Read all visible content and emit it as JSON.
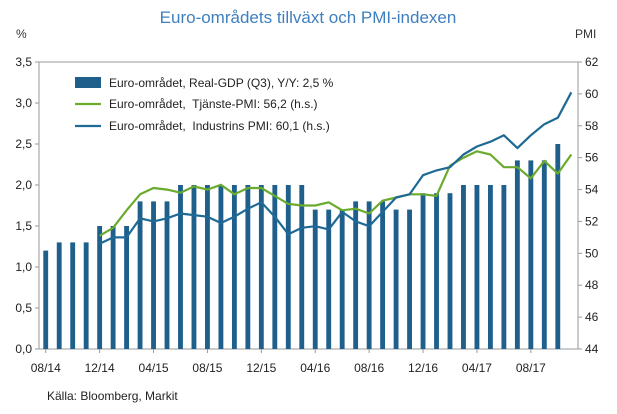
{
  "chart_data": {
    "type": "bar",
    "title": "Euro-områdets tillväxt och PMI-indexen",
    "left_axis_unit": "%",
    "right_axis_unit": "PMI",
    "source": "Källa: Bloomberg, Markit",
    "ylim_left": [
      0,
      3.5
    ],
    "ylim_right": [
      44,
      62
    ],
    "left_ticks": [
      "0,0",
      "0,5",
      "1,0",
      "1,5",
      "2,0",
      "2,5",
      "3,0",
      "3,5"
    ],
    "right_ticks": [
      "44",
      "46",
      "48",
      "50",
      "52",
      "54",
      "56",
      "58",
      "60",
      "62"
    ],
    "x_tick_labels": [
      "08/14",
      "12/14",
      "04/15",
      "08/15",
      "12/15",
      "04/16",
      "08/16",
      "12/16",
      "04/17",
      "08/17"
    ],
    "grid": false,
    "legend_position": "top-left",
    "months": [
      "08/14",
      "09/14",
      "10/14",
      "11/14",
      "12/14",
      "01/15",
      "02/15",
      "03/15",
      "04/15",
      "05/15",
      "06/15",
      "07/15",
      "08/15",
      "09/15",
      "10/15",
      "11/15",
      "12/15",
      "01/16",
      "02/16",
      "03/16",
      "04/16",
      "05/16",
      "06/16",
      "07/16",
      "08/16",
      "09/16",
      "10/16",
      "11/16",
      "12/16",
      "01/17",
      "02/17",
      "03/17",
      "04/17",
      "05/17",
      "06/17",
      "07/17",
      "08/17",
      "09/17",
      "10/17",
      "11/17"
    ],
    "series": [
      {
        "name": "Euro-området, Real-GDP (Q3), Y/Y: 2,5 %",
        "kind": "bar",
        "axis": "left",
        "color": "#1f5f8b",
        "values": [
          1.2,
          1.3,
          1.3,
          1.3,
          1.5,
          1.5,
          1.5,
          1.8,
          1.8,
          1.8,
          2.0,
          2.0,
          2.0,
          2.0,
          2.0,
          2.0,
          2.0,
          2.0,
          2.0,
          2.0,
          1.7,
          1.7,
          1.7,
          1.8,
          1.8,
          1.8,
          1.7,
          1.7,
          1.9,
          1.9,
          1.9,
          2.0,
          2.0,
          2.0,
          2.0,
          2.3,
          2.3,
          2.3,
          2.5,
          null
        ]
      },
      {
        "name": "Euro-området,  Tjänste-PMI: 56,2 (h.s.)",
        "kind": "line",
        "axis": "right",
        "color": "#6aab2e",
        "values": [
          null,
          null,
          null,
          null,
          51.1,
          51.6,
          52.7,
          53.7,
          54.1,
          54.0,
          53.8,
          54.2,
          54.0,
          54.3,
          53.7,
          54.1,
          54.1,
          53.6,
          53.1,
          53.0,
          53.0,
          53.2,
          52.7,
          52.8,
          52.5,
          53.3,
          53.5,
          53.7,
          53.7,
          53.6,
          55.5,
          56.0,
          56.4,
          56.2,
          55.4,
          55.4,
          54.7,
          55.8,
          55.0,
          56.2
        ]
      },
      {
        "name": "Euro-området,  Industrins PMI: 60,1 (h.s.)",
        "kind": "line",
        "axis": "right",
        "color": "#1f6a95",
        "values": [
          null,
          null,
          null,
          null,
          50.6,
          51.0,
          51.0,
          52.2,
          52.0,
          52.2,
          52.5,
          52.4,
          52.3,
          51.9,
          52.3,
          52.8,
          53.2,
          52.3,
          51.2,
          51.6,
          51.7,
          51.5,
          52.6,
          52.0,
          51.7,
          52.6,
          53.5,
          53.7,
          54.9,
          55.2,
          55.4,
          56.2,
          56.7,
          57.0,
          57.4,
          56.6,
          57.4,
          58.1,
          58.5,
          60.1
        ]
      }
    ]
  }
}
